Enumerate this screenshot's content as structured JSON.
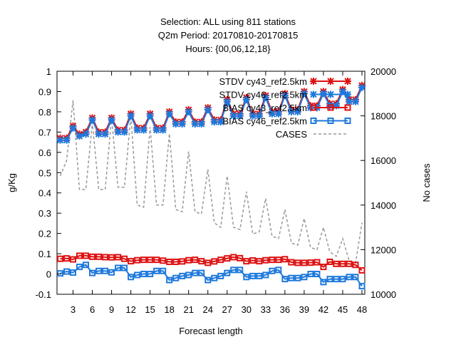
{
  "chart_data": {
    "type": "line",
    "title_lines": [
      "Selection: ALL using   811 stations",
      "Q2m   Period: 20170810-20170815",
      "Hours: {00,06,12,18}"
    ],
    "xlabel": "Forecast length",
    "ylabel": "g/Kg",
    "y2label": "No cases",
    "xlim": [
      1,
      48
    ],
    "ylim": [
      -0.1,
      1
    ],
    "y2lim": [
      10000,
      20000
    ],
    "x_ticks": [
      3,
      6,
      9,
      12,
      15,
      18,
      21,
      24,
      27,
      30,
      33,
      36,
      39,
      42,
      45,
      48
    ],
    "y_ticks": [
      "-0.1",
      "0",
      "0.1",
      "0.2",
      "0.3",
      "0.4",
      "0.5",
      "0.6",
      "0.7",
      "0.8",
      "0.9",
      "1"
    ],
    "y2_ticks": [
      "10000",
      "12000",
      "14000",
      "16000",
      "18000",
      "20000"
    ],
    "legend_position": "top-right",
    "x": [
      1,
      2,
      3,
      4,
      5,
      6,
      7,
      8,
      9,
      10,
      11,
      12,
      13,
      14,
      15,
      16,
      17,
      18,
      19,
      20,
      21,
      22,
      23,
      24,
      25,
      26,
      27,
      28,
      29,
      30,
      31,
      32,
      33,
      34,
      35,
      36,
      37,
      38,
      39,
      40,
      41,
      42,
      43,
      44,
      45,
      46,
      47,
      48
    ],
    "series": [
      {
        "name": "STDV cy43_ref2.5km",
        "axis": "y1",
        "color": "#dd1111",
        "marker": "x",
        "values": [
          0.67,
          0.67,
          0.73,
          0.69,
          0.7,
          0.77,
          0.7,
          0.7,
          0.77,
          0.71,
          0.71,
          0.79,
          0.72,
          0.72,
          0.79,
          0.72,
          0.72,
          0.8,
          0.75,
          0.75,
          0.81,
          0.75,
          0.75,
          0.82,
          0.76,
          0.76,
          0.86,
          0.79,
          0.79,
          0.87,
          0.79,
          0.79,
          0.88,
          0.8,
          0.8,
          0.89,
          0.81,
          0.81,
          0.9,
          0.83,
          0.83,
          0.9,
          0.84,
          0.84,
          0.91,
          0.86,
          0.86,
          0.93
        ]
      },
      {
        "name": "STDV cy46_ref2.5km",
        "axis": "y1",
        "color": "#1e78dc",
        "marker": "x",
        "values": [
          0.66,
          0.66,
          0.72,
          0.68,
          0.69,
          0.76,
          0.69,
          0.69,
          0.76,
          0.7,
          0.7,
          0.78,
          0.71,
          0.71,
          0.78,
          0.71,
          0.71,
          0.79,
          0.74,
          0.74,
          0.8,
          0.74,
          0.74,
          0.81,
          0.75,
          0.75,
          0.85,
          0.78,
          0.78,
          0.86,
          0.78,
          0.78,
          0.87,
          0.79,
          0.79,
          0.88,
          0.8,
          0.8,
          0.89,
          0.82,
          0.82,
          0.89,
          0.83,
          0.83,
          0.9,
          0.85,
          0.85,
          0.92
        ]
      },
      {
        "name": "BIAS cy43_ref2.5km",
        "axis": "y1",
        "color": "#dd1111",
        "marker": "square",
        "values": [
          0.075,
          0.077,
          0.072,
          0.09,
          0.09,
          0.085,
          0.085,
          0.083,
          0.082,
          0.083,
          0.075,
          0.063,
          0.068,
          0.07,
          0.07,
          0.07,
          0.066,
          0.06,
          0.06,
          0.062,
          0.068,
          0.07,
          0.063,
          0.055,
          0.062,
          0.07,
          0.077,
          0.083,
          0.078,
          0.063,
          0.067,
          0.063,
          0.068,
          0.07,
          0.07,
          0.073,
          0.058,
          0.055,
          0.055,
          0.056,
          0.058,
          0.035,
          0.06,
          0.05,
          0.05,
          0.05,
          0.045,
          0.018
        ]
      },
      {
        "name": "BIAS cy46_ref2.5km",
        "axis": "y1",
        "color": "#1e78dc",
        "marker": "square",
        "values": [
          0.003,
          0.012,
          0.007,
          0.035,
          0.045,
          0.005,
          0.015,
          0.015,
          0.008,
          0.03,
          0.03,
          -0.015,
          -0.005,
          0.0,
          0.0,
          0.015,
          0.015,
          -0.03,
          -0.02,
          -0.01,
          -0.005,
          0.005,
          0.005,
          -0.03,
          -0.02,
          -0.01,
          0.005,
          0.02,
          0.02,
          -0.015,
          -0.01,
          -0.01,
          -0.005,
          0.015,
          0.02,
          -0.025,
          -0.02,
          -0.02,
          -0.015,
          0.0,
          0.0,
          -0.04,
          -0.025,
          -0.025,
          -0.025,
          -0.015,
          -0.015,
          -0.06
        ]
      },
      {
        "name": "CASES",
        "axis": "y2",
        "color": "#9a9a9a",
        "dashed": true,
        "values": [
          15300,
          16000,
          18700,
          14700,
          14700,
          17700,
          14700,
          14700,
          17900,
          14800,
          14800,
          18000,
          14000,
          13900,
          17500,
          14000,
          14000,
          17200,
          13800,
          13700,
          16400,
          13700,
          13600,
          15600,
          13200,
          13000,
          15300,
          13000,
          12900,
          14600,
          12700,
          12800,
          14300,
          12600,
          12500,
          13800,
          12300,
          12200,
          13400,
          12100,
          12000,
          13000,
          11900,
          11700,
          12500,
          11500,
          11400,
          13200
        ]
      }
    ]
  }
}
